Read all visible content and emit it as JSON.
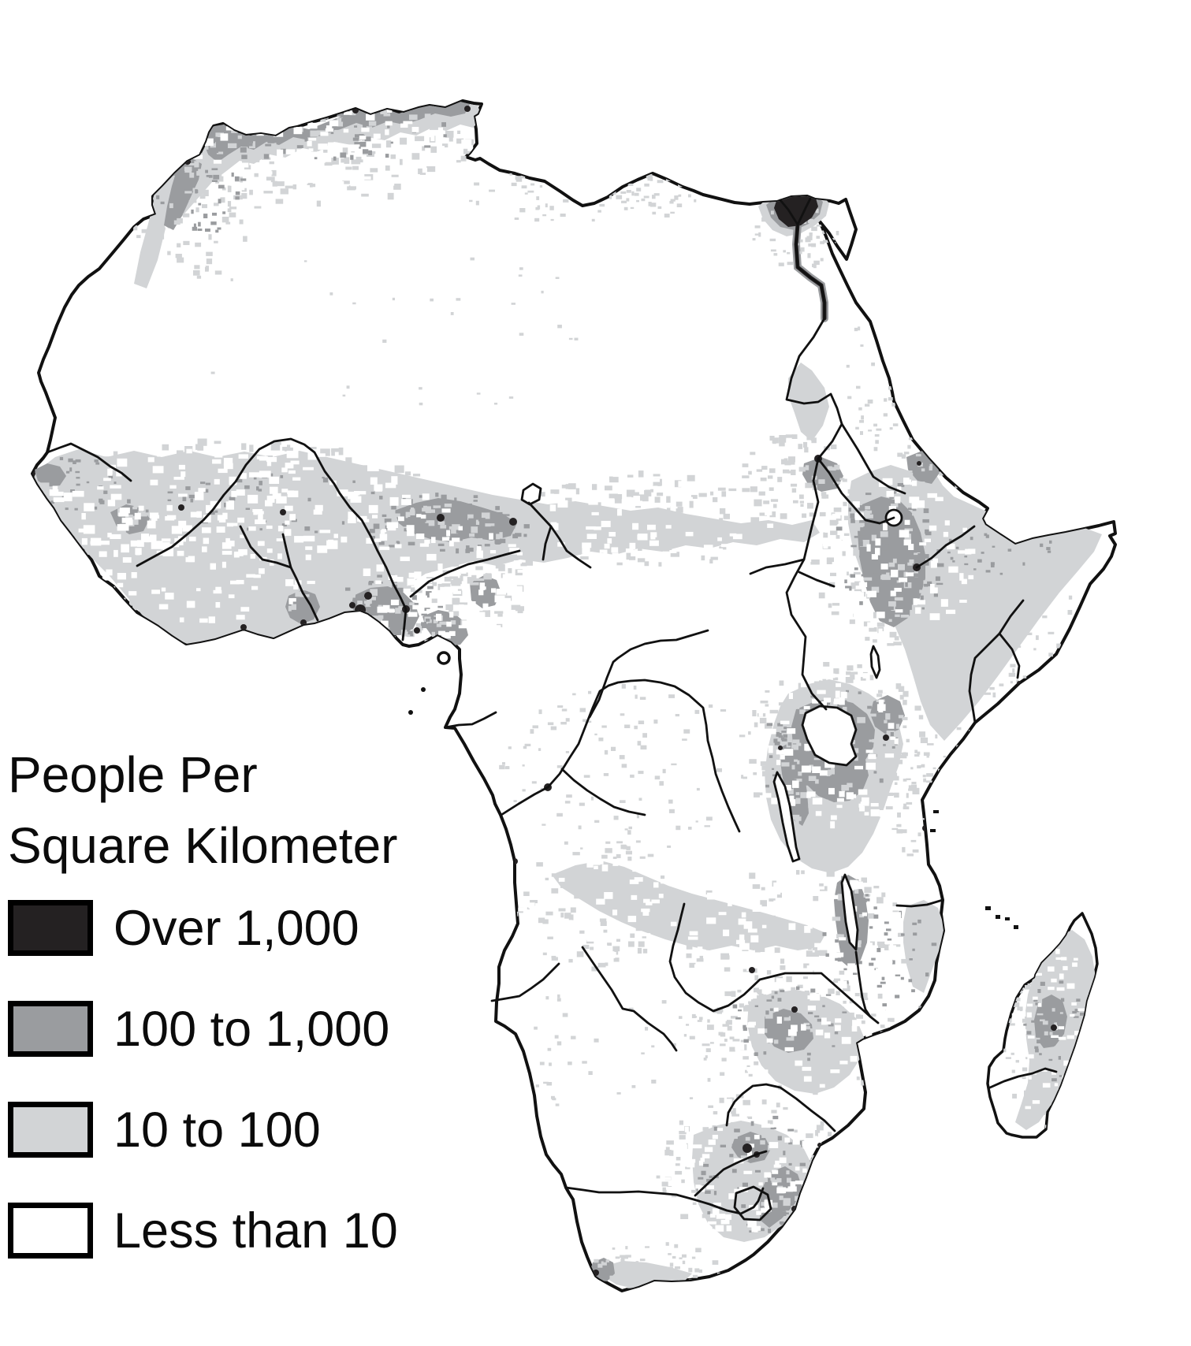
{
  "map": {
    "name": "Africa population density map",
    "region": "Africa"
  },
  "legend": {
    "title_line1": "People Per",
    "title_line2": "Square Kilometer",
    "items": [
      {
        "label": "Over 1,000",
        "color": "#242122"
      },
      {
        "label": "100 to 1,000",
        "color": "#9a9c9f"
      },
      {
        "label": "10 to 100",
        "color": "#d2d4d6"
      },
      {
        "label": "Less than 10",
        "color": "#ffffff"
      }
    ]
  },
  "colors": {
    "high": "#242122",
    "mid": "#9a9c9f",
    "low": "#d2d4d6",
    "none": "#ffffff",
    "line": "#111111"
  }
}
